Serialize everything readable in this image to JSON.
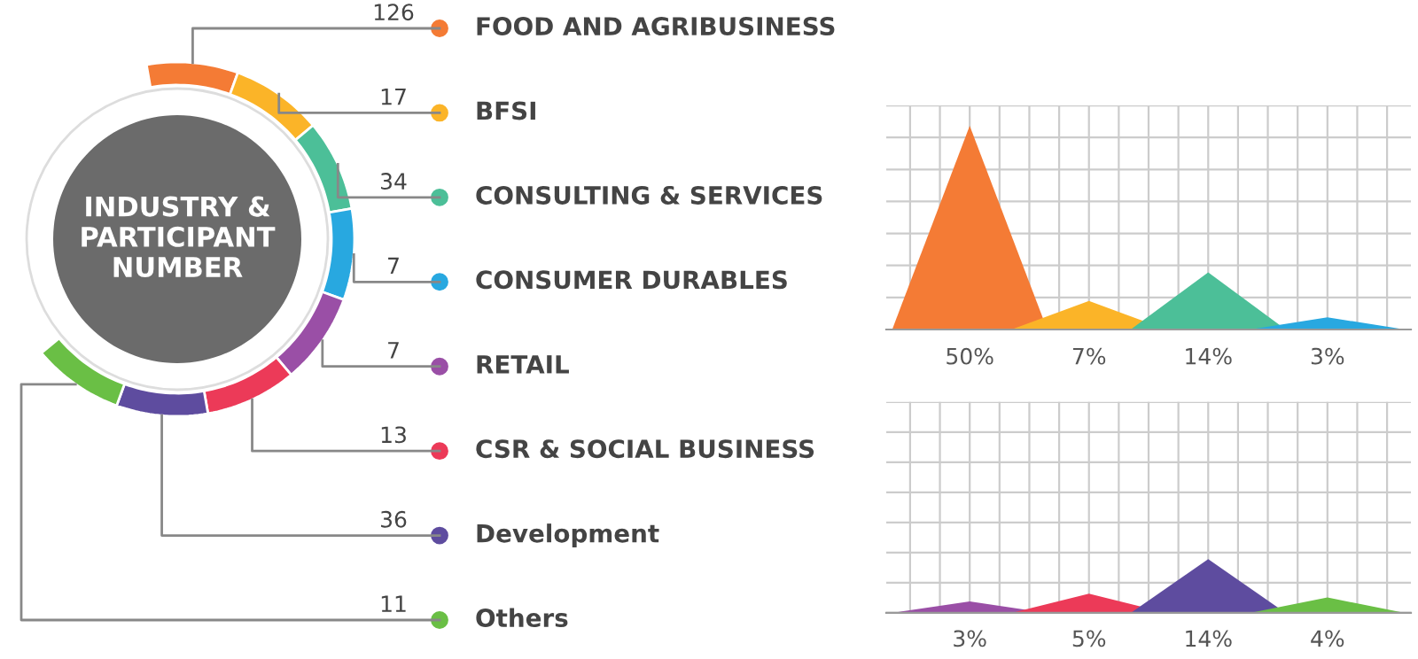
{
  "chart_data": [
    {
      "type": "other",
      "title": "INDUSTRY & PARTICIPANT NUMBER",
      "categories": [
        "FOOD AND AGRIBUSINESS",
        "BFSI",
        "CONSULTING & SERVICES",
        "CONSUMER DURABLES",
        "RETAIL",
        "CSR & SOCIAL BUSINESS",
        "Development",
        "Others"
      ],
      "values": [
        126,
        17,
        34,
        7,
        7,
        13,
        36,
        11
      ],
      "colors": [
        "#f47b35",
        "#fbb428",
        "#4cbf98",
        "#28a8e0",
        "#9a4fa6",
        "#ec3a58",
        "#5e4c9f",
        "#6abf45"
      ],
      "data_labels": true
    },
    {
      "type": "other",
      "values": [
        50,
        7,
        14,
        3
      ],
      "value_labels": [
        "50%",
        "7%",
        "14%",
        "3%"
      ],
      "colors": [
        "#f47b35",
        "#fbb428",
        "#4cbf98",
        "#28a8e0"
      ]
    },
    {
      "type": "other",
      "values": [
        3,
        5,
        14,
        4
      ],
      "value_labels": [
        "3%",
        "5%",
        "14%",
        "4%"
      ],
      "colors": [
        "#9a4fa6",
        "#ec3a58",
        "#5e4c9f",
        "#6abf45"
      ]
    }
  ]
}
